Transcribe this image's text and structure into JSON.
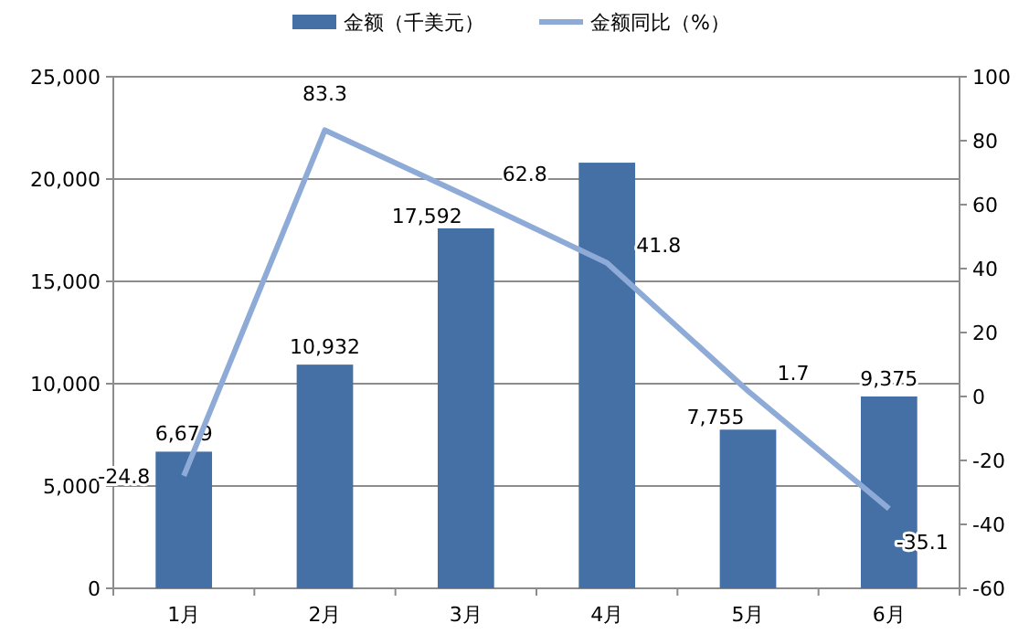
{
  "chart_data": {
    "type": "bar",
    "categories": [
      "1月",
      "2月",
      "3月",
      "4月",
      "5月",
      "6月"
    ],
    "series": [
      {
        "name": "金额（千美元）",
        "color": "#4470a6",
        "values": [
          6679,
          10932,
          17592,
          20800,
          7755,
          9375
        ],
        "value_labels": [
          "6,679",
          "10,932",
          "17,592",
          null,
          "7,755",
          "9,375"
        ]
      },
      {
        "name": "金额同比（%）",
        "type": "line",
        "axis": "y2",
        "color": "#8eaad6",
        "values": [
          -24.8,
          83.3,
          62.8,
          41.8,
          1.7,
          -35.1
        ],
        "value_labels": [
          "-24.8",
          "83.3",
          "62.8",
          "41.8",
          "1.7",
          "-35.1"
        ]
      }
    ],
    "ylim": [
      0,
      25000
    ],
    "yticks": [
      0,
      {
        "value": 5000,
        "label": "5,000"
      },
      {
        "value": 10000,
        "label": "10,000"
      },
      {
        "value": 15000,
        "label": "15,000"
      },
      {
        "value": 20000,
        "label": "20,000"
      },
      {
        "value": 25000,
        "label": "25,000"
      }
    ],
    "y2lim": [
      -60,
      100
    ],
    "y2ticks": [
      -60,
      -40,
      -20,
      0,
      20,
      40,
      60,
      80,
      100
    ],
    "grid": "y",
    "legend": "top"
  }
}
